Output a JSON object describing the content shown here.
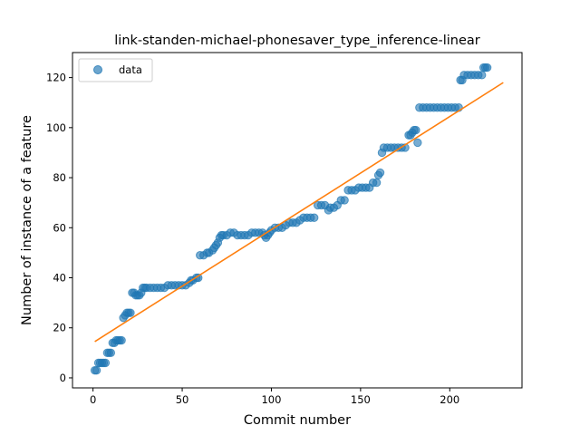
{
  "chart_data": {
    "type": "scatter",
    "title": "link-standen-michael-phonesaver_type_inference-linear",
    "xlabel": "Commit number",
    "ylabel": "Number of instance of a feature",
    "xlim": [
      -11.5,
      240.5
    ],
    "ylim": [
      -4,
      130
    ],
    "xticks": [
      0,
      50,
      100,
      150,
      200
    ],
    "yticks": [
      0,
      20,
      40,
      60,
      80,
      100,
      120
    ],
    "grid": false,
    "legend": {
      "position": "top-left",
      "entries": [
        "data"
      ]
    },
    "series": [
      {
        "name": "data",
        "kind": "scatter",
        "color": "#1f77b4",
        "points": [
          [
            1,
            3
          ],
          [
            2,
            3
          ],
          [
            3,
            6
          ],
          [
            4,
            6
          ],
          [
            5,
            6
          ],
          [
            6,
            6
          ],
          [
            7,
            6
          ],
          [
            8,
            10
          ],
          [
            9,
            10
          ],
          [
            10,
            10
          ],
          [
            11,
            14
          ],
          [
            12,
            14
          ],
          [
            13,
            15
          ],
          [
            14,
            15
          ],
          [
            15,
            15
          ],
          [
            16,
            15
          ],
          [
            17,
            24
          ],
          [
            18,
            25
          ],
          [
            19,
            26
          ],
          [
            20,
            26
          ],
          [
            21,
            26
          ],
          [
            22,
            34
          ],
          [
            23,
            34
          ],
          [
            24,
            33
          ],
          [
            25,
            33
          ],
          [
            26,
            33
          ],
          [
            27,
            34
          ],
          [
            28,
            36
          ],
          [
            29,
            36
          ],
          [
            30,
            36
          ],
          [
            32,
            36
          ],
          [
            34,
            36
          ],
          [
            36,
            36
          ],
          [
            38,
            36
          ],
          [
            40,
            36
          ],
          [
            42,
            37
          ],
          [
            44,
            37
          ],
          [
            46,
            37
          ],
          [
            48,
            37
          ],
          [
            50,
            37
          ],
          [
            52,
            37
          ],
          [
            54,
            38
          ],
          [
            55,
            39
          ],
          [
            56,
            39
          ],
          [
            58,
            40
          ],
          [
            59,
            40
          ],
          [
            60,
            49
          ],
          [
            62,
            49
          ],
          [
            64,
            50
          ],
          [
            65,
            50
          ],
          [
            67,
            51
          ],
          [
            68,
            52
          ],
          [
            69,
            53
          ],
          [
            70,
            54
          ],
          [
            71,
            56
          ],
          [
            72,
            57
          ],
          [
            73,
            57
          ],
          [
            75,
            57
          ],
          [
            77,
            58
          ],
          [
            79,
            58
          ],
          [
            81,
            57
          ],
          [
            83,
            57
          ],
          [
            85,
            57
          ],
          [
            87,
            57
          ],
          [
            89,
            58
          ],
          [
            91,
            58
          ],
          [
            93,
            58
          ],
          [
            95,
            58
          ],
          [
            96,
            57
          ],
          [
            97,
            56
          ],
          [
            98,
            57
          ],
          [
            99,
            58
          ],
          [
            100,
            59
          ],
          [
            102,
            60
          ],
          [
            104,
            60
          ],
          [
            106,
            60
          ],
          [
            108,
            61
          ],
          [
            110,
            62
          ],
          [
            112,
            62
          ],
          [
            114,
            62
          ],
          [
            116,
            63
          ],
          [
            118,
            64
          ],
          [
            120,
            64
          ],
          [
            122,
            64
          ],
          [
            124,
            64
          ],
          [
            126,
            69
          ],
          [
            128,
            69
          ],
          [
            130,
            69
          ],
          [
            132,
            67
          ],
          [
            133,
            68
          ],
          [
            135,
            68
          ],
          [
            137,
            69
          ],
          [
            139,
            71
          ],
          [
            141,
            71
          ],
          [
            143,
            75
          ],
          [
            145,
            75
          ],
          [
            147,
            75
          ],
          [
            149,
            76
          ],
          [
            151,
            76
          ],
          [
            153,
            76
          ],
          [
            155,
            76
          ],
          [
            157,
            78
          ],
          [
            159,
            78
          ],
          [
            160,
            81
          ],
          [
            161,
            82
          ],
          [
            162,
            90
          ],
          [
            163,
            92
          ],
          [
            165,
            92
          ],
          [
            167,
            92
          ],
          [
            169,
            92
          ],
          [
            171,
            92
          ],
          [
            173,
            92
          ],
          [
            175,
            92
          ],
          [
            177,
            97
          ],
          [
            178,
            97
          ],
          [
            179,
            98
          ],
          [
            180,
            99
          ],
          [
            181,
            99
          ],
          [
            182,
            94
          ],
          [
            183,
            108
          ],
          [
            185,
            108
          ],
          [
            187,
            108
          ],
          [
            189,
            108
          ],
          [
            191,
            108
          ],
          [
            193,
            108
          ],
          [
            195,
            108
          ],
          [
            197,
            108
          ],
          [
            199,
            108
          ],
          [
            201,
            108
          ],
          [
            203,
            108
          ],
          [
            205,
            108
          ],
          [
            206,
            119
          ],
          [
            207,
            119
          ],
          [
            208,
            121
          ],
          [
            210,
            121
          ],
          [
            212,
            121
          ],
          [
            214,
            121
          ],
          [
            216,
            121
          ],
          [
            218,
            121
          ],
          [
            219,
            124
          ],
          [
            220,
            124
          ],
          [
            221,
            124
          ]
        ]
      },
      {
        "name": "",
        "kind": "line",
        "color": "#ff7f0e",
        "points": [
          [
            1,
            14.5
          ],
          [
            230,
            118
          ]
        ]
      }
    ]
  }
}
